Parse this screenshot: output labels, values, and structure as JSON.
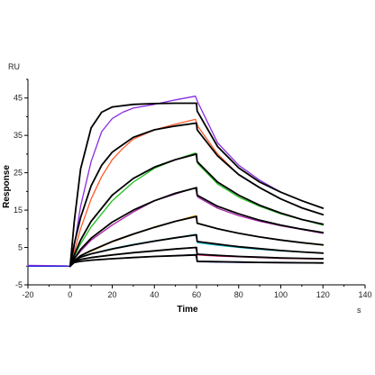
{
  "chart_data": {
    "type": "line",
    "xlabel": "Time",
    "ylabel": "Response",
    "y_unit": "RU",
    "x_unit": "s",
    "xlim": [
      -20,
      140
    ],
    "ylim": [
      -5,
      50
    ],
    "x_ticks": [
      -20,
      0,
      20,
      40,
      60,
      80,
      100,
      120,
      140
    ],
    "y_ticks": [
      -5,
      5,
      15,
      25,
      35,
      45
    ],
    "grid": false,
    "association_end": 60,
    "series": [
      {
        "color": "#8a2be2",
        "style": "measured",
        "points": [
          [
            -20,
            0.2
          ],
          [
            -2,
            0.1
          ],
          [
            0,
            0
          ],
          [
            1,
            2
          ],
          [
            5,
            16
          ],
          [
            10,
            28
          ],
          [
            15,
            36
          ],
          [
            20,
            39.5
          ],
          [
            25,
            41.2
          ],
          [
            30,
            42.3
          ],
          [
            40,
            43.3
          ],
          [
            50,
            44.5
          ],
          [
            59.5,
            45.5
          ],
          [
            60.5,
            44
          ],
          [
            70,
            33
          ],
          [
            80,
            27
          ],
          [
            90,
            23
          ],
          [
            100,
            19.8
          ],
          [
            110,
            17.5
          ],
          [
            120,
            15.5
          ]
        ]
      },
      {
        "color": "#ff5a2a",
        "style": "measured",
        "points": [
          [
            -20,
            0
          ],
          [
            0,
            0
          ],
          [
            1,
            1.8
          ],
          [
            5,
            10
          ],
          [
            10,
            18
          ],
          [
            15,
            24
          ],
          [
            20,
            28.5
          ],
          [
            25,
            31.5
          ],
          [
            30,
            34
          ],
          [
            40,
            36.5
          ],
          [
            50,
            38
          ],
          [
            59.5,
            39.3
          ],
          [
            60.5,
            37.5
          ],
          [
            70,
            30
          ],
          [
            80,
            24.5
          ],
          [
            90,
            21
          ],
          [
            100,
            18
          ],
          [
            110,
            15.5
          ],
          [
            120,
            13.8
          ]
        ]
      },
      {
        "color": "#1fbf1f",
        "style": "measured",
        "points": [
          [
            -20,
            0
          ],
          [
            0,
            0
          ],
          [
            1,
            1.5
          ],
          [
            5,
            6
          ],
          [
            10,
            10.5
          ],
          [
            20,
            17.5
          ],
          [
            30,
            22.5
          ],
          [
            40,
            26.2
          ],
          [
            50,
            28.5
          ],
          [
            59.5,
            30.3
          ],
          [
            60.5,
            27.5
          ],
          [
            70,
            22
          ],
          [
            80,
            18.5
          ],
          [
            90,
            16
          ],
          [
            100,
            14
          ],
          [
            110,
            12.5
          ],
          [
            120,
            11
          ]
        ]
      },
      {
        "color": "#aa22aa",
        "style": "measured",
        "points": [
          [
            -20,
            0
          ],
          [
            0,
            0
          ],
          [
            1,
            1.3
          ],
          [
            5,
            4
          ],
          [
            10,
            7
          ],
          [
            20,
            11
          ],
          [
            30,
            14.5
          ],
          [
            40,
            17.5
          ],
          [
            50,
            19.3
          ],
          [
            59.5,
            21
          ],
          [
            60.5,
            18.5
          ],
          [
            70,
            15.5
          ],
          [
            80,
            13.5
          ],
          [
            90,
            12
          ],
          [
            100,
            10.8
          ],
          [
            110,
            9.8
          ],
          [
            120,
            8.8
          ]
        ]
      },
      {
        "color": "#e8a000",
        "style": "measured",
        "points": [
          [
            -20,
            0
          ],
          [
            0,
            0
          ],
          [
            1,
            1.2
          ],
          [
            5,
            2.8
          ],
          [
            10,
            4
          ],
          [
            20,
            6.5
          ],
          [
            30,
            8.5
          ],
          [
            40,
            10.5
          ],
          [
            50,
            12
          ],
          [
            59.5,
            13.5
          ],
          [
            60.5,
            11.5
          ],
          [
            70,
            10
          ],
          [
            80,
            8.8
          ],
          [
            90,
            7.8
          ],
          [
            100,
            7
          ],
          [
            110,
            6.3
          ],
          [
            120,
            5.6
          ]
        ]
      },
      {
        "color": "#00b8c8",
        "style": "measured",
        "points": [
          [
            -20,
            0
          ],
          [
            0,
            0
          ],
          [
            1,
            1.2
          ],
          [
            5,
            2.5
          ],
          [
            10,
            3.3
          ],
          [
            20,
            4.7
          ],
          [
            30,
            5.8
          ],
          [
            40,
            6.8
          ],
          [
            50,
            7.6
          ],
          [
            59.5,
            8.5
          ],
          [
            60.5,
            6.3
          ],
          [
            70,
            5.6
          ],
          [
            80,
            5
          ],
          [
            90,
            4.5
          ],
          [
            100,
            4.1
          ],
          [
            110,
            3.8
          ],
          [
            120,
            3.5
          ]
        ]
      },
      {
        "color": "#ff2a8a",
        "style": "measured",
        "points": [
          [
            -20,
            0
          ],
          [
            0,
            0
          ],
          [
            1,
            1
          ],
          [
            5,
            1.8
          ],
          [
            10,
            2.3
          ],
          [
            20,
            3
          ],
          [
            30,
            3.6
          ],
          [
            40,
            4.1
          ],
          [
            50,
            4.6
          ],
          [
            59.5,
            5
          ],
          [
            60.5,
            3
          ],
          [
            70,
            2.7
          ],
          [
            80,
            2.5
          ],
          [
            90,
            2.3
          ],
          [
            100,
            2.1
          ],
          [
            110,
            2
          ],
          [
            120,
            1.9
          ]
        ]
      },
      {
        "color": "#2a2ad8",
        "style": "measured",
        "points": [
          [
            -20,
            0
          ],
          [
            0,
            0
          ],
          [
            1,
            0.8
          ],
          [
            5,
            1.3
          ],
          [
            10,
            1.6
          ],
          [
            20,
            2
          ],
          [
            30,
            2.3
          ],
          [
            40,
            2.6
          ],
          [
            50,
            2.8
          ],
          [
            59.5,
            3.1
          ],
          [
            60.5,
            1.2
          ],
          [
            70,
            1.1
          ],
          [
            80,
            1
          ],
          [
            90,
            0.95
          ],
          [
            100,
            0.9
          ],
          [
            110,
            0.85
          ],
          [
            120,
            0.8
          ]
        ]
      },
      {
        "color": "#000000",
        "style": "fit",
        "points": [
          [
            0,
            0
          ],
          [
            2,
            12
          ],
          [
            5,
            26
          ],
          [
            10,
            37
          ],
          [
            15,
            41.2
          ],
          [
            20,
            42.6
          ],
          [
            30,
            43.3
          ],
          [
            40,
            43.5
          ],
          [
            50,
            43.6
          ],
          [
            60,
            43.6
          ],
          [
            60.3,
            41.5
          ],
          [
            70,
            32
          ],
          [
            80,
            26.3
          ],
          [
            90,
            22.5
          ],
          [
            100,
            19.8
          ],
          [
            110,
            17.5
          ],
          [
            120,
            15.5
          ]
        ]
      },
      {
        "color": "#000000",
        "style": "fit",
        "points": [
          [
            0,
            0
          ],
          [
            2,
            6
          ],
          [
            5,
            13
          ],
          [
            10,
            21.5
          ],
          [
            15,
            27
          ],
          [
            20,
            30.5
          ],
          [
            30,
            34.5
          ],
          [
            40,
            36.5
          ],
          [
            50,
            37.5
          ],
          [
            60,
            38.3
          ],
          [
            60.3,
            36.5
          ],
          [
            70,
            29.5
          ],
          [
            80,
            24.5
          ],
          [
            90,
            21
          ],
          [
            100,
            18
          ],
          [
            110,
            15.6
          ],
          [
            120,
            13.8
          ]
        ]
      },
      {
        "color": "#000000",
        "style": "fit",
        "points": [
          [
            0,
            0
          ],
          [
            2,
            3
          ],
          [
            5,
            7
          ],
          [
            10,
            12
          ],
          [
            20,
            19
          ],
          [
            30,
            23.5
          ],
          [
            40,
            26.5
          ],
          [
            50,
            28.5
          ],
          [
            60,
            30
          ],
          [
            60.3,
            28
          ],
          [
            70,
            22.5
          ],
          [
            80,
            19
          ],
          [
            90,
            16.3
          ],
          [
            100,
            14.2
          ],
          [
            110,
            12.5
          ],
          [
            120,
            11.2
          ]
        ]
      },
      {
        "color": "#000000",
        "style": "fit",
        "points": [
          [
            0,
            0
          ],
          [
            2,
            2
          ],
          [
            5,
            4.5
          ],
          [
            10,
            7.5
          ],
          [
            20,
            11.8
          ],
          [
            30,
            15
          ],
          [
            40,
            17.5
          ],
          [
            50,
            19.5
          ],
          [
            60,
            21
          ],
          [
            60.3,
            19
          ],
          [
            70,
            16
          ],
          [
            80,
            14
          ],
          [
            90,
            12.3
          ],
          [
            100,
            11
          ],
          [
            110,
            9.9
          ],
          [
            120,
            9
          ]
        ]
      },
      {
        "color": "#000000",
        "style": "fit",
        "points": [
          [
            0,
            0
          ],
          [
            2,
            1.5
          ],
          [
            5,
            2.8
          ],
          [
            10,
            4.2
          ],
          [
            20,
            6.6
          ],
          [
            30,
            8.6
          ],
          [
            40,
            10.4
          ],
          [
            50,
            12
          ],
          [
            60,
            13.3
          ],
          [
            60.3,
            11.5
          ],
          [
            70,
            10
          ],
          [
            80,
            8.8
          ],
          [
            90,
            7.8
          ],
          [
            100,
            7
          ],
          [
            110,
            6.3
          ],
          [
            120,
            5.7
          ]
        ]
      },
      {
        "color": "#000000",
        "style": "fit",
        "points": [
          [
            0,
            0
          ],
          [
            2,
            1.4
          ],
          [
            5,
            2.4
          ],
          [
            10,
            3.3
          ],
          [
            20,
            4.6
          ],
          [
            30,
            5.7
          ],
          [
            40,
            6.7
          ],
          [
            50,
            7.6
          ],
          [
            60,
            8.4
          ],
          [
            60.3,
            6.6
          ],
          [
            70,
            5.9
          ],
          [
            80,
            5.2
          ],
          [
            90,
            4.7
          ],
          [
            100,
            4.2
          ],
          [
            110,
            3.8
          ],
          [
            120,
            3.5
          ]
        ]
      },
      {
        "color": "#000000",
        "style": "fit",
        "points": [
          [
            0,
            0
          ],
          [
            2,
            1.2
          ],
          [
            5,
            1.8
          ],
          [
            10,
            2.3
          ],
          [
            20,
            3
          ],
          [
            30,
            3.6
          ],
          [
            40,
            4.1
          ],
          [
            50,
            4.6
          ],
          [
            60,
            5
          ],
          [
            60.3,
            3.2
          ],
          [
            70,
            2.9
          ],
          [
            80,
            2.6
          ],
          [
            90,
            2.4
          ],
          [
            100,
            2.2
          ],
          [
            110,
            2.1
          ],
          [
            120,
            2
          ]
        ]
      },
      {
        "color": "#000000",
        "style": "fit",
        "points": [
          [
            0,
            0
          ],
          [
            2,
            1
          ],
          [
            5,
            1.3
          ],
          [
            10,
            1.6
          ],
          [
            20,
            2
          ],
          [
            30,
            2.3
          ],
          [
            40,
            2.6
          ],
          [
            50,
            2.8
          ],
          [
            60,
            3
          ],
          [
            60.3,
            1.3
          ],
          [
            70,
            1.2
          ],
          [
            80,
            1.1
          ],
          [
            90,
            1
          ],
          [
            100,
            0.95
          ],
          [
            110,
            0.9
          ],
          [
            120,
            0.85
          ]
        ]
      }
    ]
  }
}
